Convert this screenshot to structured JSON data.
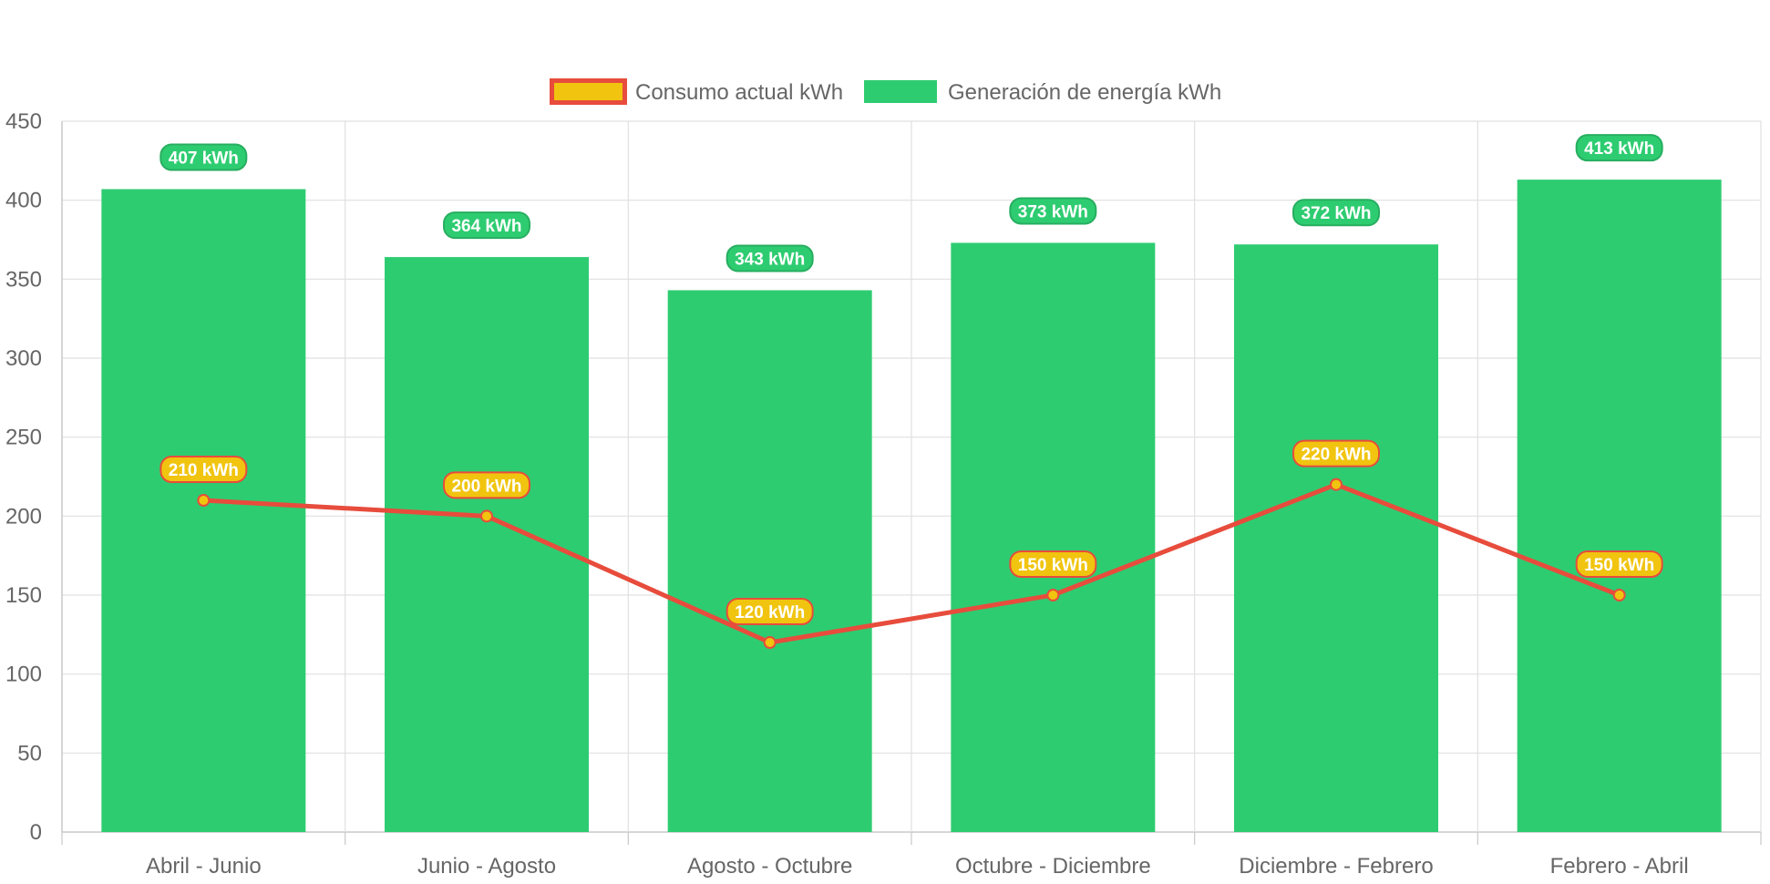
{
  "chart_data": {
    "type": "bar",
    "title": "",
    "xlabel": "",
    "ylabel": "",
    "categories": [
      "Abril - Junio",
      "Junio - Agosto",
      "Agosto - Octubre",
      "Octubre - Diciembre",
      "Diciembre - Febrero",
      "Febrero - Abril"
    ],
    "ylim": [
      0,
      450
    ],
    "yticks": [
      "0",
      "50",
      "100",
      "150",
      "200",
      "250",
      "300",
      "350",
      "400",
      "450"
    ],
    "grid": true,
    "legend_position": "top-center",
    "series": [
      {
        "name": "Consumo actual kWh",
        "type": "line",
        "values": [
          210,
          200,
          120,
          150,
          220,
          150
        ],
        "data_labels": [
          "210 kWh",
          "200 kWh",
          "120 kWh",
          "150 kWh",
          "220 kWh",
          "150 kWh"
        ],
        "line_color": "#e74c3c",
        "fill_color": "#f1c40f"
      },
      {
        "name": "Generación de energía kWh",
        "type": "bar",
        "values": [
          407,
          364,
          343,
          373,
          372,
          413
        ],
        "data_labels": [
          "407 kWh",
          "364 kWh",
          "343 kWh",
          "373 kWh",
          "372 kWh",
          "413 kWh"
        ],
        "color": "#2ecc71",
        "label_border_color": "#27ae60"
      }
    ]
  }
}
